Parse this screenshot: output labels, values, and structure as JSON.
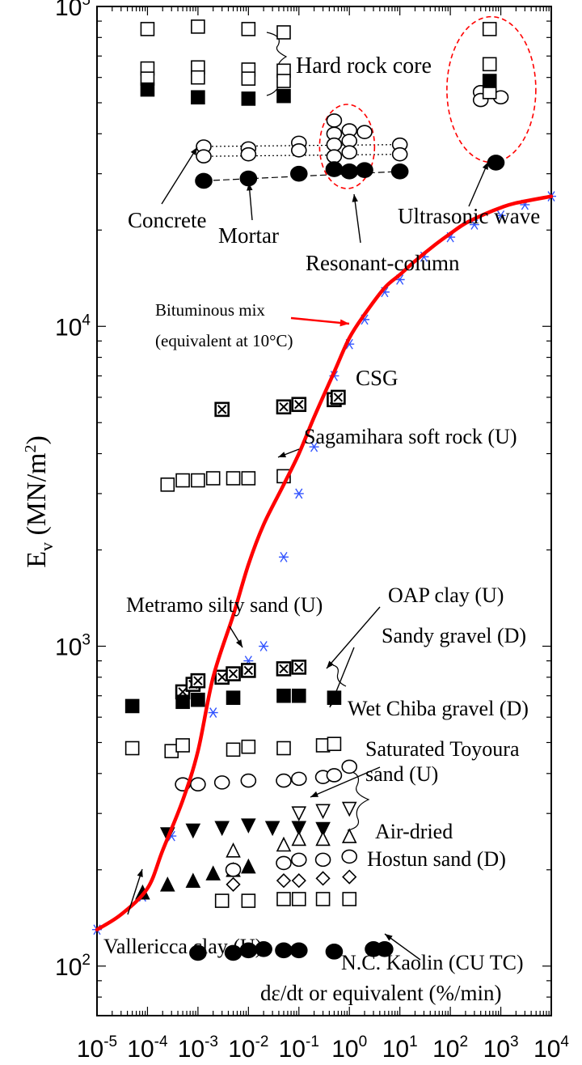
{
  "chart_data": {
    "type": "scatter",
    "title": "",
    "xlabel": "dε/dt or equivalent (%/min)",
    "ylabel_main": "E",
    "ylabel_sub": "v",
    "ylabel_unit": " (MN/m",
    "ylabel_sup": "2",
    "ylabel_close": ")",
    "x_scale": "log",
    "y_scale": "log",
    "xlim": [
      1e-05,
      10000
    ],
    "ylim": [
      70,
      100000
    ],
    "grid": false,
    "legend": "none",
    "x_tick_labels": [
      {
        "value": 1e-05,
        "base": "10",
        "exp": "-5"
      },
      {
        "value": 0.0001,
        "base": "10",
        "exp": "-4"
      },
      {
        "value": 0.001,
        "base": "10",
        "exp": "-3"
      },
      {
        "value": 0.01,
        "base": "10",
        "exp": "-2"
      },
      {
        "value": 0.1,
        "base": "10",
        "exp": "-1"
      },
      {
        "value": 1,
        "base": "10",
        "exp": "0"
      },
      {
        "value": 10,
        "base": "10",
        "exp": "1"
      },
      {
        "value": 100,
        "base": "10",
        "exp": "2"
      },
      {
        "value": 1000,
        "base": "10",
        "exp": "3"
      },
      {
        "value": 10000,
        "base": "10",
        "exp": "4"
      }
    ],
    "y_tick_labels": [
      {
        "value": 100,
        "base": "10",
        "exp": "2"
      },
      {
        "value": 1000,
        "base": "10",
        "exp": "3"
      },
      {
        "value": 10000,
        "base": "10",
        "exp": "4"
      },
      {
        "value": 100000,
        "base": "10",
        "exp": "5"
      }
    ],
    "colors": {
      "fit_curve": "#ff0000",
      "bituminous_markers": "#3355ff",
      "dashed_ellipse": "#ff0000",
      "ink": "#000000"
    },
    "fit_curve": {
      "name": "Bituminous mix",
      "points": [
        [
          1e-05,
          130
        ],
        [
          3e-05,
          145
        ],
        [
          0.0001,
          175
        ],
        [
          0.0002,
          230
        ],
        [
          0.0005,
          330
        ],
        [
          0.001,
          470
        ],
        [
          0.002,
          800
        ],
        [
          0.005,
          1250
        ],
        [
          0.01,
          1800
        ],
        [
          0.02,
          2400
        ],
        [
          0.05,
          3200
        ],
        [
          0.1,
          4000
        ],
        [
          0.2,
          5200
        ],
        [
          0.5,
          7200
        ],
        [
          1,
          9200
        ],
        [
          2,
          10900
        ],
        [
          5,
          13200
        ],
        [
          10,
          14500
        ],
        [
          20,
          16000
        ],
        [
          50,
          18000
        ],
        [
          100,
          19500
        ],
        [
          200,
          21000
        ],
        [
          500,
          22500
        ],
        [
          1000,
          23500
        ],
        [
          2000,
          24300
        ],
        [
          10000,
          25500
        ]
      ]
    },
    "series": [
      {
        "name": "Hard rock core",
        "marker": "square-open",
        "points": [
          [
            0.0001,
            85000
          ],
          [
            0.001,
            86500
          ],
          [
            0.01,
            85000
          ],
          [
            0.05,
            83000
          ],
          [
            0.0001,
            64000
          ],
          [
            0.001,
            64500
          ],
          [
            0.01,
            63500
          ],
          [
            0.05,
            63000
          ],
          [
            0.0001,
            59500
          ],
          [
            0.001,
            60000
          ],
          [
            0.01,
            59500
          ],
          [
            0.05,
            58500
          ]
        ]
      },
      {
        "name": "Hard rock core",
        "marker": "square-filled",
        "points": [
          [
            0.0001,
            55000
          ],
          [
            0.001,
            52000
          ],
          [
            0.01,
            51500
          ],
          [
            0.05,
            52500
          ]
        ]
      },
      {
        "name": "Concrete",
        "marker": "circle-open",
        "points": [
          [
            0.0013,
            36500
          ],
          [
            0.0013,
            34000
          ],
          [
            0.01,
            36000
          ],
          [
            0.01,
            34500
          ],
          [
            0.1,
            37500
          ],
          [
            0.1,
            35500
          ],
          [
            0.5,
            44000
          ],
          [
            0.5,
            40000
          ],
          [
            0.5,
            37000
          ],
          [
            0.5,
            34000
          ],
          [
            1,
            41000
          ],
          [
            1,
            38000
          ],
          [
            1,
            35000
          ],
          [
            2,
            40500
          ],
          [
            10,
            37000
          ],
          [
            10,
            34500
          ]
        ]
      },
      {
        "name": "Mortar",
        "marker": "circle-filled",
        "points": [
          [
            0.0013,
            28500
          ],
          [
            0.01,
            29000
          ],
          [
            0.1,
            30000
          ],
          [
            0.5,
            31000
          ],
          [
            1,
            30500
          ],
          [
            2,
            30800
          ],
          [
            10,
            30500
          ]
        ]
      },
      {
        "name": "Ultrasonic wave",
        "marker": "circle-open",
        "points": [
          [
            400,
            54000
          ],
          [
            400,
            51000
          ],
          [
            1000,
            52000
          ]
        ]
      },
      {
        "name": "Ultrasonic wave",
        "marker": "square-open",
        "points": [
          [
            600,
            85000
          ],
          [
            600,
            66000
          ],
          [
            600,
            54000
          ]
        ]
      },
      {
        "name": "Ultrasonic wave",
        "marker": "square-filled",
        "points": [
          [
            600,
            58500
          ]
        ]
      },
      {
        "name": "Ultrasonic wave",
        "marker": "circle-filled",
        "points": [
          [
            800,
            32500
          ]
        ]
      },
      {
        "name": "Bituminous mix (equivalent at 10°C)",
        "marker": "star",
        "points": [
          [
            1e-05,
            130
          ],
          [
            8e-05,
            165
          ],
          [
            0.0003,
            255
          ],
          [
            0.002,
            620
          ],
          [
            0.01,
            900
          ],
          [
            0.02,
            1000
          ],
          [
            0.05,
            1900
          ],
          [
            0.1,
            3000
          ],
          [
            0.2,
            4200
          ],
          [
            0.5,
            7000
          ],
          [
            1,
            8800
          ],
          [
            2,
            10500
          ],
          [
            5,
            12800
          ],
          [
            10,
            14000
          ],
          [
            30,
            16500
          ],
          [
            100,
            19000
          ],
          [
            300,
            20800
          ],
          [
            1000,
            22200
          ],
          [
            3000,
            24000
          ],
          [
            10000,
            25500
          ]
        ]
      },
      {
        "name": "CSG",
        "marker": "square-x",
        "points": [
          [
            0.003,
            5500
          ],
          [
            0.05,
            5600
          ],
          [
            0.1,
            5700
          ],
          [
            0.5,
            5900
          ],
          [
            0.6,
            6000
          ]
        ]
      },
      {
        "name": "Sagamihara soft rock (U)",
        "marker": "square-open",
        "points": [
          [
            0.00025,
            3200
          ],
          [
            0.0005,
            3300
          ],
          [
            0.001,
            3300
          ],
          [
            0.002,
            3350
          ],
          [
            0.005,
            3350
          ],
          [
            0.01,
            3350
          ],
          [
            0.05,
            3400
          ]
        ]
      },
      {
        "name": "Metramo silty sand (U)",
        "marker": "square-x",
        "points": [
          [
            0.0005,
            720
          ],
          [
            0.0008,
            760
          ],
          [
            0.001,
            780
          ],
          [
            0.003,
            800
          ],
          [
            0.005,
            820
          ],
          [
            0.01,
            840
          ],
          [
            0.05,
            850
          ],
          [
            0.1,
            860
          ]
        ]
      },
      {
        "name": "OAP clay (U)",
        "marker": "square-filled",
        "points": [
          [
            5e-05,
            650
          ],
          [
            0.0005,
            670
          ],
          [
            0.001,
            680
          ],
          [
            0.005,
            690
          ],
          [
            0.05,
            700
          ],
          [
            0.1,
            700
          ],
          [
            0.5,
            690
          ]
        ]
      },
      {
        "name": "Sandy gravel (D)",
        "marker": "square-open",
        "points": [
          [
            5e-05,
            480
          ],
          [
            0.0003,
            470
          ],
          [
            0.0005,
            490
          ],
          [
            0.005,
            475
          ],
          [
            0.01,
            485
          ],
          [
            0.05,
            480
          ],
          [
            0.3,
            490
          ],
          [
            0.5,
            495
          ]
        ]
      },
      {
        "name": "Wet Chiba gravel (D)",
        "marker": "circle-open",
        "points": [
          [
            0.0005,
            370
          ],
          [
            0.001,
            370
          ],
          [
            0.003,
            375
          ],
          [
            0.01,
            380
          ],
          [
            0.05,
            380
          ],
          [
            0.1,
            385
          ],
          [
            0.3,
            390
          ],
          [
            0.5,
            395
          ],
          [
            1,
            420
          ]
        ]
      },
      {
        "name": "Saturated Toyoura sand (U)",
        "marker": "triangle-down-filled",
        "points": [
          [
            0.00025,
            258
          ],
          [
            0.0008,
            265
          ],
          [
            0.003,
            270
          ],
          [
            0.01,
            275
          ],
          [
            0.03,
            270
          ],
          [
            0.1,
            270
          ],
          [
            0.3,
            268
          ]
        ]
      },
      {
        "name": "Saturated Toyoura sand (U)",
        "marker": "triangle-down-open",
        "points": [
          [
            0.1,
            300
          ],
          [
            0.3,
            305
          ],
          [
            1,
            310
          ]
        ]
      },
      {
        "name": "Air-dried Hostun sand (D)",
        "marker": "triangle-filled",
        "points": [
          [
            0.00025,
            180
          ],
          [
            0.0008,
            185
          ],
          [
            0.002,
            195
          ],
          [
            0.005,
            200
          ],
          [
            0.01,
            205
          ]
        ]
      },
      {
        "name": "Air-dried Hostun sand (D)",
        "marker": "triangle-open",
        "points": [
          [
            0.005,
            230
          ],
          [
            0.05,
            240
          ],
          [
            0.1,
            250
          ],
          [
            0.3,
            250
          ],
          [
            1,
            255
          ]
        ]
      },
      {
        "name": "Air-dried Hostun sand (D)",
        "marker": "circle-open",
        "points": [
          [
            0.005,
            200
          ],
          [
            0.05,
            210
          ],
          [
            0.1,
            215
          ],
          [
            0.3,
            215
          ],
          [
            1,
            220
          ]
        ]
      },
      {
        "name": "Air-dried Hostun sand (D)",
        "marker": "diamond-open",
        "points": [
          [
            0.005,
            180
          ],
          [
            0.05,
            185
          ],
          [
            0.1,
            185
          ],
          [
            0.3,
            188
          ],
          [
            1,
            190
          ]
        ]
      },
      {
        "name": "Air-dried Hostun sand (D)",
        "marker": "square-open",
        "points": [
          [
            0.003,
            160
          ],
          [
            0.01,
            160
          ],
          [
            0.05,
            162
          ],
          [
            0.1,
            162
          ],
          [
            0.3,
            162
          ],
          [
            1,
            162
          ]
        ]
      },
      {
        "name": "Vallericca clay (U)",
        "marker": "triangle-filled",
        "points": [
          [
            8e-05,
            170
          ]
        ]
      },
      {
        "name": "N.C. Kaolin (CU TC)",
        "marker": "circle-filled",
        "points": [
          [
            0.001,
            110
          ],
          [
            0.005,
            110
          ],
          [
            0.01,
            112
          ],
          [
            0.02,
            113
          ],
          [
            0.05,
            112
          ],
          [
            0.1,
            112
          ],
          [
            0.5,
            111
          ],
          [
            3,
            113
          ],
          [
            5,
            113
          ]
        ]
      }
    ],
    "annotations": [
      {
        "text": "Hard rock core"
      },
      {
        "text": "Concrete"
      },
      {
        "text": "Mortar"
      },
      {
        "text": "Resonant-column"
      },
      {
        "text": "Ultrasonic wave"
      },
      {
        "text": "Bituminous mix"
      },
      {
        "text": "(equivalent at 10°C)"
      },
      {
        "text": "CSG"
      },
      {
        "text": "Sagamihara soft rock (U)"
      },
      {
        "text": "Metramo silty sand (U)"
      },
      {
        "text": "OAP clay (U)"
      },
      {
        "text": "Sandy gravel (D)"
      },
      {
        "text": "Wet Chiba gravel (D)"
      },
      {
        "text": "Saturated Toyoura"
      },
      {
        "text": "sand (U)"
      },
      {
        "text": "Air-dried"
      },
      {
        "text": "Hostun sand (D)"
      },
      {
        "text": "Vallericca clay (U)"
      },
      {
        "text": "N.C. Kaolin (CU TC)"
      }
    ]
  }
}
